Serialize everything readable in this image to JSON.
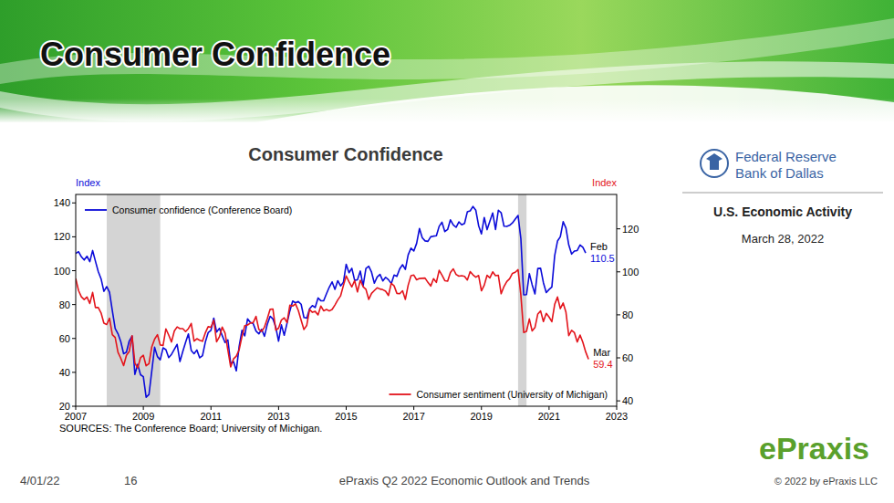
{
  "slide": {
    "title": "Consumer Confidence",
    "source_panel": {
      "org_line1": "Federal Reserve",
      "org_line2": "Bank of Dallas",
      "report": "U.S. Economic Activity",
      "date": "March 28, 2022"
    },
    "footer": {
      "date": "4/01/22",
      "page": 16,
      "center": "ePraxis Q2 2022 Economic Outlook and Trends",
      "copyright": "© 2022 by ePraxis LLC"
    },
    "logo": "ePraxis"
  },
  "chart_data": {
    "type": "line",
    "title": "Consumer Confidence",
    "source": "SOURCES: The Conference Board; University of Michigan.",
    "ylabel": "Index",
    "y2label": "Index",
    "xlim": [
      2007,
      2023
    ],
    "xticks": [
      2007,
      2009,
      2011,
      2013,
      2015,
      2017,
      2019,
      2021,
      2023
    ],
    "ylim": [
      20,
      145
    ],
    "yticks": [
      20,
      40,
      60,
      80,
      100,
      120,
      140
    ],
    "y2lim": [
      37.5,
      136
    ],
    "y2ticks": [
      40,
      60,
      80,
      100,
      120
    ],
    "grid": false,
    "legend": "split",
    "shaded_periods": [
      [
        2007.917,
        2009.5
      ],
      [
        2020.083,
        2020.333
      ]
    ],
    "x": [
      2007,
      2007.083,
      2007.167,
      2007.25,
      2007.333,
      2007.417,
      2007.5,
      2007.583,
      2007.667,
      2007.75,
      2007.833,
      2007.917,
      2008,
      2008.083,
      2008.167,
      2008.25,
      2008.333,
      2008.417,
      2008.5,
      2008.583,
      2008.667,
      2008.75,
      2008.833,
      2008.917,
      2009,
      2009.083,
      2009.167,
      2009.25,
      2009.333,
      2009.417,
      2009.5,
      2009.583,
      2009.667,
      2009.75,
      2009.833,
      2009.917,
      2010,
      2010.083,
      2010.167,
      2010.25,
      2010.333,
      2010.417,
      2010.5,
      2010.583,
      2010.667,
      2010.75,
      2010.833,
      2010.917,
      2011,
      2011.083,
      2011.167,
      2011.25,
      2011.333,
      2011.417,
      2011.5,
      2011.583,
      2011.667,
      2011.75,
      2011.833,
      2011.917,
      2012,
      2012.083,
      2012.167,
      2012.25,
      2012.333,
      2012.417,
      2012.5,
      2012.583,
      2012.667,
      2012.75,
      2012.833,
      2012.917,
      2013,
      2013.083,
      2013.167,
      2013.25,
      2013.333,
      2013.417,
      2013.5,
      2013.583,
      2013.667,
      2013.75,
      2013.833,
      2013.917,
      2014,
      2014.083,
      2014.167,
      2014.25,
      2014.333,
      2014.417,
      2014.5,
      2014.583,
      2014.667,
      2014.75,
      2014.833,
      2014.917,
      2015,
      2015.083,
      2015.167,
      2015.25,
      2015.333,
      2015.417,
      2015.5,
      2015.583,
      2015.667,
      2015.75,
      2015.833,
      2015.917,
      2016,
      2016.083,
      2016.167,
      2016.25,
      2016.333,
      2016.417,
      2016.5,
      2016.583,
      2016.667,
      2016.75,
      2016.833,
      2016.917,
      2017,
      2017.083,
      2017.167,
      2017.25,
      2017.333,
      2017.417,
      2017.5,
      2017.583,
      2017.667,
      2017.75,
      2017.833,
      2017.917,
      2018,
      2018.083,
      2018.167,
      2018.25,
      2018.333,
      2018.417,
      2018.5,
      2018.583,
      2018.667,
      2018.75,
      2018.833,
      2018.917,
      2019,
      2019.083,
      2019.167,
      2019.25,
      2019.333,
      2019.417,
      2019.5,
      2019.583,
      2019.667,
      2019.75,
      2019.833,
      2019.917,
      2020,
      2020.083,
      2020.167,
      2020.25,
      2020.333,
      2020.417,
      2020.5,
      2020.583,
      2020.667,
      2020.75,
      2020.833,
      2020.917,
      2021,
      2021.083,
      2021.167,
      2021.25,
      2021.333,
      2021.417,
      2021.5,
      2021.583,
      2021.667,
      2021.75,
      2021.833,
      2021.917,
      2022,
      2022.083,
      2022.167
    ],
    "series": [
      {
        "name": "Consumer confidence (Conference Board)",
        "color": "#0b0bd9",
        "end_label": "Feb",
        "end_value": 110.5,
        "values": [
          110.2,
          111.2,
          108.2,
          106.3,
          108.5,
          105.3,
          111.9,
          105.6,
          99.5,
          95.2,
          87.8,
          90.6,
          87.3,
          76.4,
          65.9,
          62.8,
          58.1,
          51.0,
          51.9,
          58.5,
          61.4,
          38.8,
          44.7,
          38.6,
          37.4,
          25.3,
          26.9,
          40.8,
          54.8,
          49.3,
          47.4,
          54.5,
          53.4,
          48.7,
          50.6,
          53.6,
          56.5,
          46.4,
          52.3,
          57.7,
          62.7,
          52.9,
          51.0,
          53.2,
          48.6,
          49.9,
          57.8,
          63.4,
          64.8,
          72.0,
          63.8,
          66.0,
          61.7,
          57.6,
          59.2,
          45.2,
          46.4,
          40.9,
          55.2,
          64.8,
          61.5,
          71.6,
          69.5,
          68.7,
          64.4,
          62.7,
          65.4,
          61.3,
          68.4,
          73.1,
          71.5,
          66.7,
          58.4,
          68.0,
          61.9,
          69.0,
          76.2,
          82.1,
          81.0,
          81.8,
          80.2,
          72.4,
          72.0,
          77.5,
          79.4,
          78.3,
          83.9,
          82.3,
          82.2,
          86.4,
          90.3,
          93.4,
          89.0,
          94.1,
          91.0,
          93.1,
          103.8,
          98.8,
          101.4,
          94.3,
          94.6,
          99.8,
          91.0,
          101.3,
          102.6,
          99.1,
          92.6,
          96.3,
          97.8,
          94.0,
          96.1,
          94.7,
          92.4,
          97.4,
          96.7,
          101.1,
          103.5,
          100.8,
          109.4,
          113.3,
          111.6,
          116.1,
          124.9,
          119.4,
          117.6,
          117.3,
          120.0,
          120.4,
          120.6,
          126.2,
          128.6,
          123.1,
          124.3,
          130.0,
          127.0,
          125.6,
          128.8,
          127.1,
          127.9,
          134.7,
          135.3,
          137.9,
          135.7,
          126.6,
          121.7,
          131.4,
          124.2,
          129.2,
          134.1,
          124.3,
          135.7,
          134.2,
          126.3,
          126.1,
          126.8,
          128.2,
          130.4,
          132.6,
          118.8,
          85.7,
          85.9,
          98.3,
          91.7,
          86.3,
          101.3,
          101.4,
          92.9,
          87.1,
          88.9,
          90.4,
          109.0,
          117.5,
          120.0,
          128.9,
          125.1,
          115.2,
          109.8,
          111.6,
          111.9,
          115.2,
          113.8,
          110.5,
          null
        ]
      },
      {
        "name": "Consumer sentiment (University of Michigan)",
        "color": "#e3141b",
        "axis": "y2",
        "end_label": "Mar",
        "end_value": 59.4,
        "values": [
          96.9,
          91.3,
          88.4,
          87.1,
          88.3,
          85.3,
          90.4,
          83.4,
          83.4,
          80.9,
          76.1,
          75.5,
          78.4,
          70.8,
          69.5,
          62.6,
          59.8,
          56.4,
          61.2,
          63.0,
          70.3,
          57.6,
          55.3,
          60.1,
          61.2,
          56.3,
          57.3,
          65.1,
          68.7,
          70.8,
          66.0,
          65.7,
          73.5,
          70.6,
          67.4,
          72.5,
          74.4,
          73.6,
          73.6,
          72.2,
          73.6,
          76.0,
          67.8,
          68.9,
          68.2,
          67.7,
          71.6,
          74.5,
          74.2,
          77.5,
          67.5,
          69.8,
          74.3,
          71.5,
          63.7,
          55.8,
          59.5,
          60.8,
          63.7,
          69.9,
          75.0,
          75.3,
          76.2,
          76.4,
          79.3,
          73.2,
          72.3,
          74.3,
          78.3,
          82.6,
          82.7,
          72.9,
          73.8,
          77.6,
          78.6,
          76.4,
          84.5,
          84.1,
          85.1,
          82.1,
          77.5,
          73.2,
          75.1,
          82.5,
          81.2,
          81.6,
          80.0,
          84.1,
          81.9,
          82.5,
          81.8,
          82.5,
          84.6,
          86.9,
          88.8,
          93.6,
          98.1,
          95.4,
          93.0,
          95.9,
          90.7,
          96.1,
          93.1,
          91.9,
          87.2,
          90.0,
          91.3,
          92.6,
          92.0,
          91.7,
          91.0,
          89.0,
          94.7,
          93.5,
          90.0,
          89.8,
          91.2,
          87.2,
          93.8,
          98.2,
          98.5,
          96.3,
          96.9,
          97.0,
          97.1,
          95.1,
          93.4,
          96.8,
          95.1,
          100.7,
          98.5,
          95.9,
          95.7,
          99.7,
          101.4,
          98.8,
          98.0,
          98.2,
          97.9,
          96.2,
          100.1,
          98.6,
          97.5,
          98.3,
          91.2,
          93.8,
          98.4,
          97.2,
          100.0,
          98.2,
          98.4,
          89.8,
          93.2,
          95.5,
          96.8,
          99.3,
          99.8,
          101.0,
          89.1,
          71.8,
          72.3,
          78.1,
          72.5,
          74.1,
          80.4,
          81.8,
          76.9,
          80.7,
          79.0,
          76.8,
          84.9,
          88.3,
          82.9,
          85.5,
          81.2,
          70.3,
          72.8,
          71.7,
          67.4,
          70.6,
          67.2,
          62.8,
          59.4
        ]
      }
    ]
  }
}
